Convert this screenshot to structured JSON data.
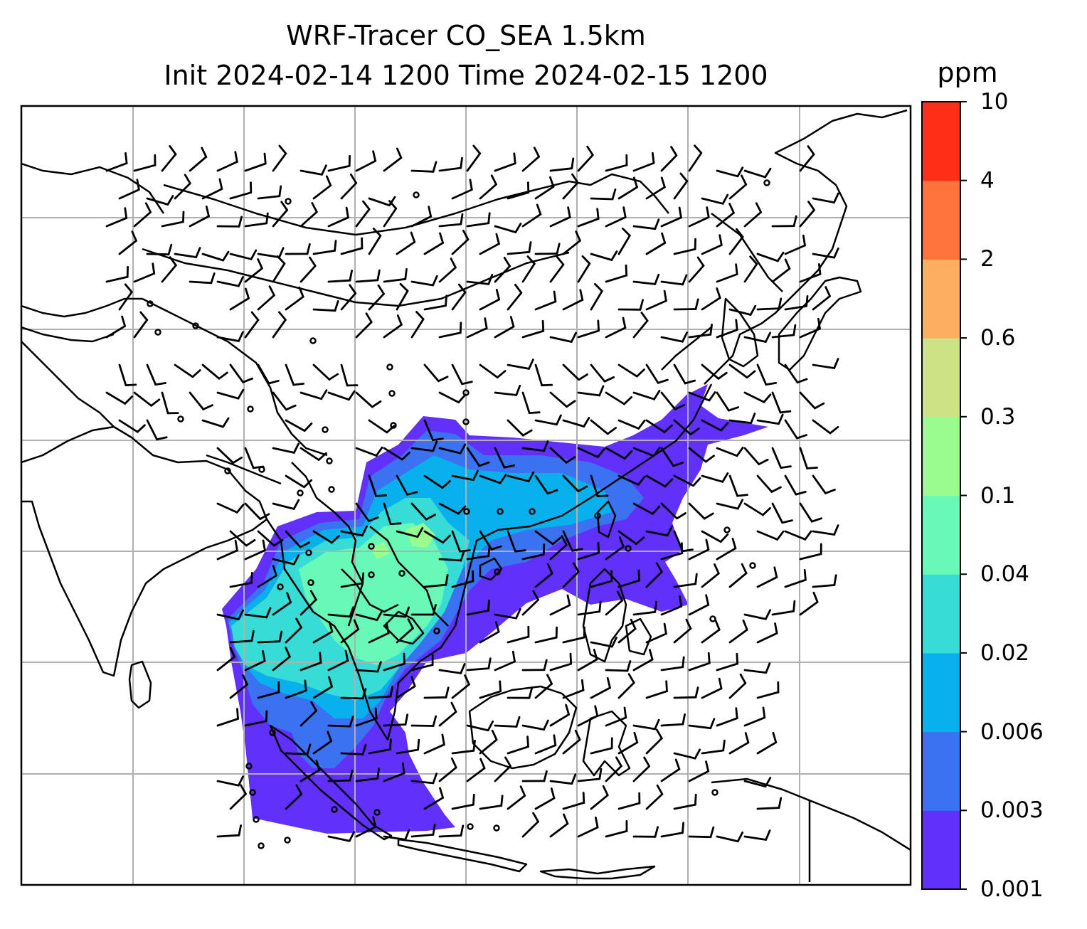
{
  "title": {
    "line1": "WRF-Tracer CO_SEA 1.5km",
    "line2": "Init 2024-02-14 1200 Time 2024-02-15 1200"
  },
  "colorbar": {
    "unit": "ppm",
    "ticks": [
      "0.001",
      "0.003",
      "0.006",
      "0.02",
      "0.04",
      "0.1",
      "0.3",
      "0.6",
      "2",
      "4",
      "10"
    ],
    "colors": [
      "#6230fb",
      "#3a72f2",
      "#08b1eb",
      "#38dcd6",
      "#68f9b8",
      "#9afb8f",
      "#cde284",
      "#feae60",
      "#ff723c",
      "#ff2e16"
    ]
  },
  "map": {
    "gridlines": true,
    "coastline_color": "#000000",
    "gridline_color": "#b0b0b0"
  }
}
